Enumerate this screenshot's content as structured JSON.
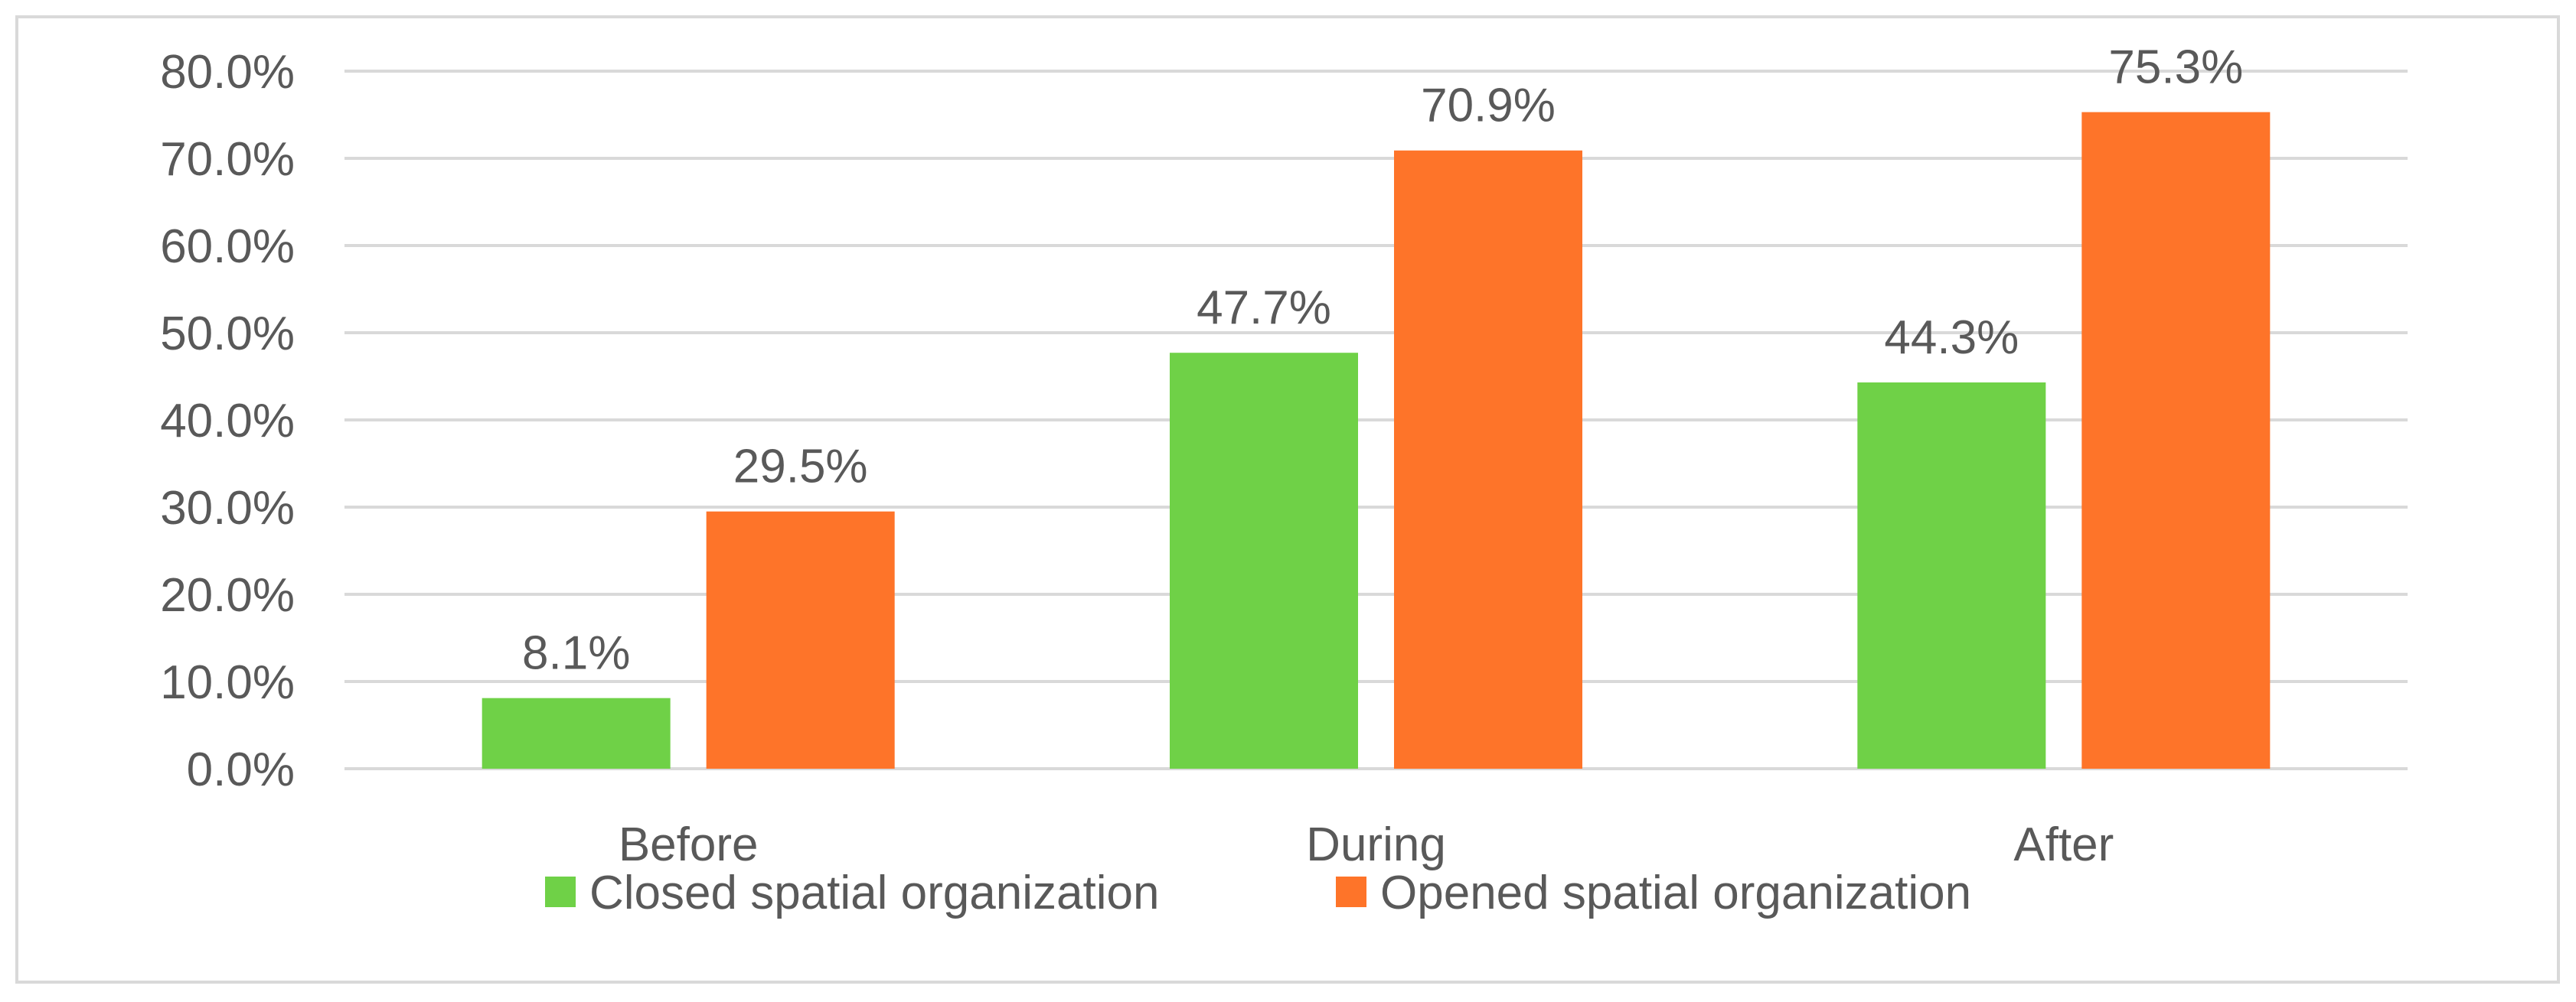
{
  "chart_data": {
    "type": "bar",
    "categories": [
      "Before",
      "During",
      "After"
    ],
    "series": [
      {
        "name": "Closed spatial organization",
        "values": [
          8.1,
          47.7,
          44.3
        ],
        "color": "#6fd147"
      },
      {
        "name": "Opened spatial organization",
        "values": [
          29.5,
          70.9,
          75.3
        ],
        "color": "#fe7429"
      }
    ],
    "data_labels": [
      [
        "8.1%",
        "47.7%",
        "44.3%"
      ],
      [
        "29.5%",
        "70.9%",
        "75.3%"
      ]
    ],
    "y_ticks": [
      "0.0%",
      "10.0%",
      "20.0%",
      "30.0%",
      "40.0%",
      "50.0%",
      "60.0%",
      "70.0%",
      "80.0%"
    ],
    "ylim": [
      0,
      80
    ],
    "y_tick_step": 10,
    "title": "",
    "xlabel": "",
    "ylabel": "",
    "grid": true,
    "legend_position": "bottom",
    "colors": {
      "grid": "#d9d9d9",
      "text": "#595959",
      "border": "#d9d9d9"
    }
  }
}
